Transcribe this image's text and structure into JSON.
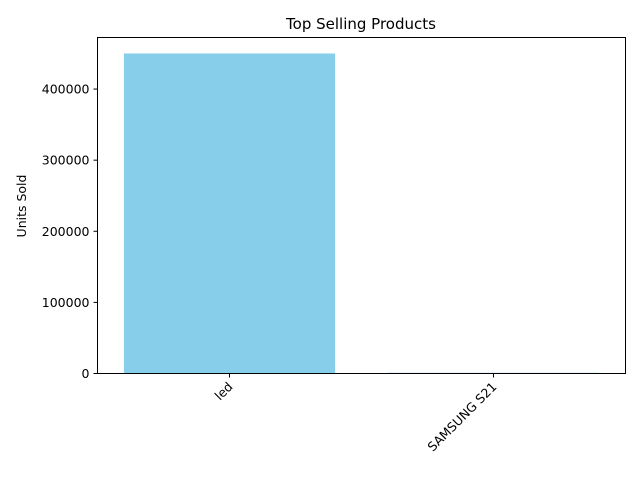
{
  "chart_data": {
    "type": "bar",
    "title": "Top Selling Products",
    "xlabel": "",
    "ylabel": "Units Sold",
    "categories": [
      "led",
      "SAMSUNG S21"
    ],
    "values": [
      450000,
      1000
    ],
    "ylim": [
      0,
      472500
    ],
    "yticks": [
      0,
      100000,
      200000,
      300000,
      400000
    ],
    "ytick_labels": [
      "0",
      "100000",
      "200000",
      "300000",
      "400000"
    ],
    "bar_color": "#87CEEB",
    "tick_rotation": 45,
    "grid": false
  }
}
